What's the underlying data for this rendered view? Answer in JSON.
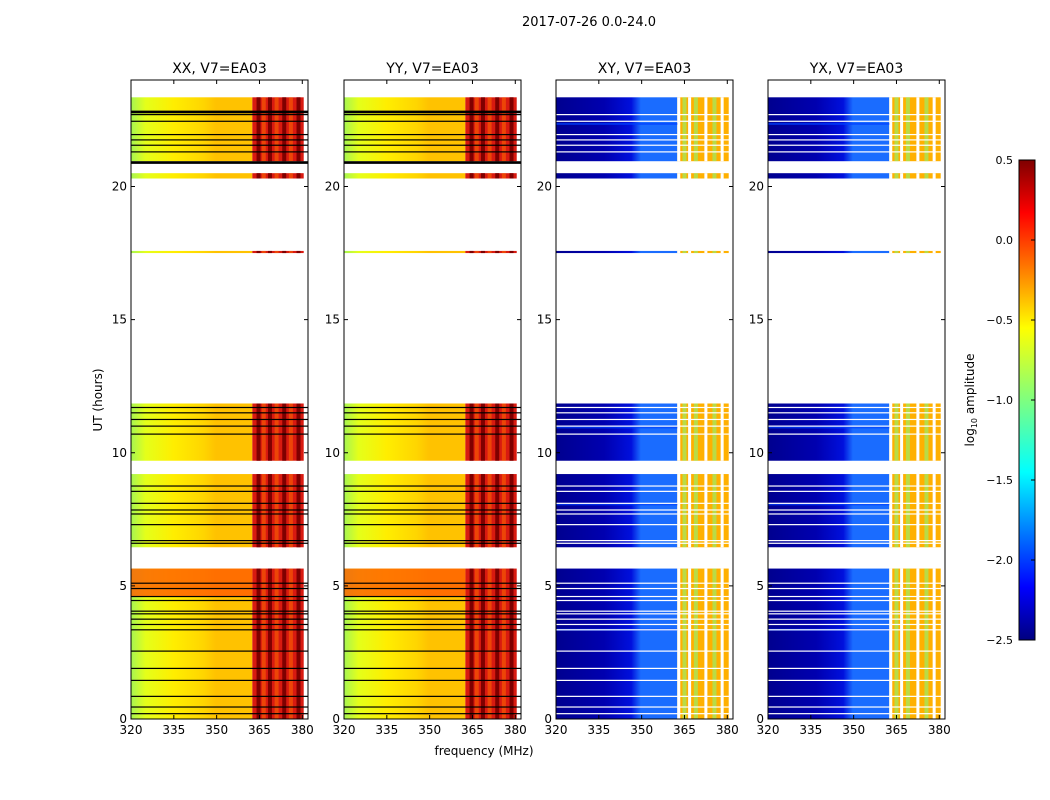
{
  "chart_data": {
    "type": "heatmap",
    "suptitle": "2017-07-26 0.0-24.0",
    "xlabel": "frequency (MHz)",
    "ylabel": "UT (hours)",
    "x_range": [
      320,
      382
    ],
    "x_ticks": [
      320,
      335,
      350,
      365,
      380
    ],
    "y_range": [
      0,
      24
    ],
    "y_ticks": [
      0,
      5,
      10,
      15,
      20
    ],
    "colorbar": {
      "label_prefix": "log",
      "label_sub": "10",
      "label_suffix": " amplitude",
      "range": [
        -2.5,
        0.5
      ],
      "ticks": [
        -2.5,
        -2.0,
        -1.5,
        -1.0,
        -0.5,
        0.0,
        0.5
      ],
      "tick_labels": [
        "−2.5",
        "−2.0",
        "−1.5",
        "−1.0",
        "−0.5",
        "0.0",
        "0.5"
      ],
      "colormap": "jet"
    },
    "data_segments_hours": [
      [
        0.0,
        5.65
      ],
      [
        6.45,
        9.2
      ],
      [
        9.7,
        11.85
      ],
      [
        17.5,
        17.58
      ],
      [
        20.3,
        20.5
      ],
      [
        20.95,
        23.35
      ]
    ],
    "gap_lines_hours": [
      0.2,
      0.45,
      0.85,
      1.45,
      1.9,
      2.55,
      3.35,
      3.55,
      3.75,
      3.95,
      4.05,
      4.45,
      4.6,
      4.9,
      5.1,
      6.6,
      6.7,
      7.3,
      7.7,
      7.85,
      8.1,
      8.55,
      8.75,
      10.7,
      11.0,
      11.25,
      11.5,
      11.7,
      21.3,
      21.55,
      21.75,
      21.95,
      22.45,
      22.7
    ],
    "panels": [
      {
        "title": "XX, V7=EA03",
        "cross_pol": false
      },
      {
        "title": "YY, V7=EA03",
        "cross_pol": false
      },
      {
        "title": "XY, V7=EA03",
        "cross_pol": true
      },
      {
        "title": "YX, V7=EA03",
        "cross_pol": true
      }
    ]
  }
}
